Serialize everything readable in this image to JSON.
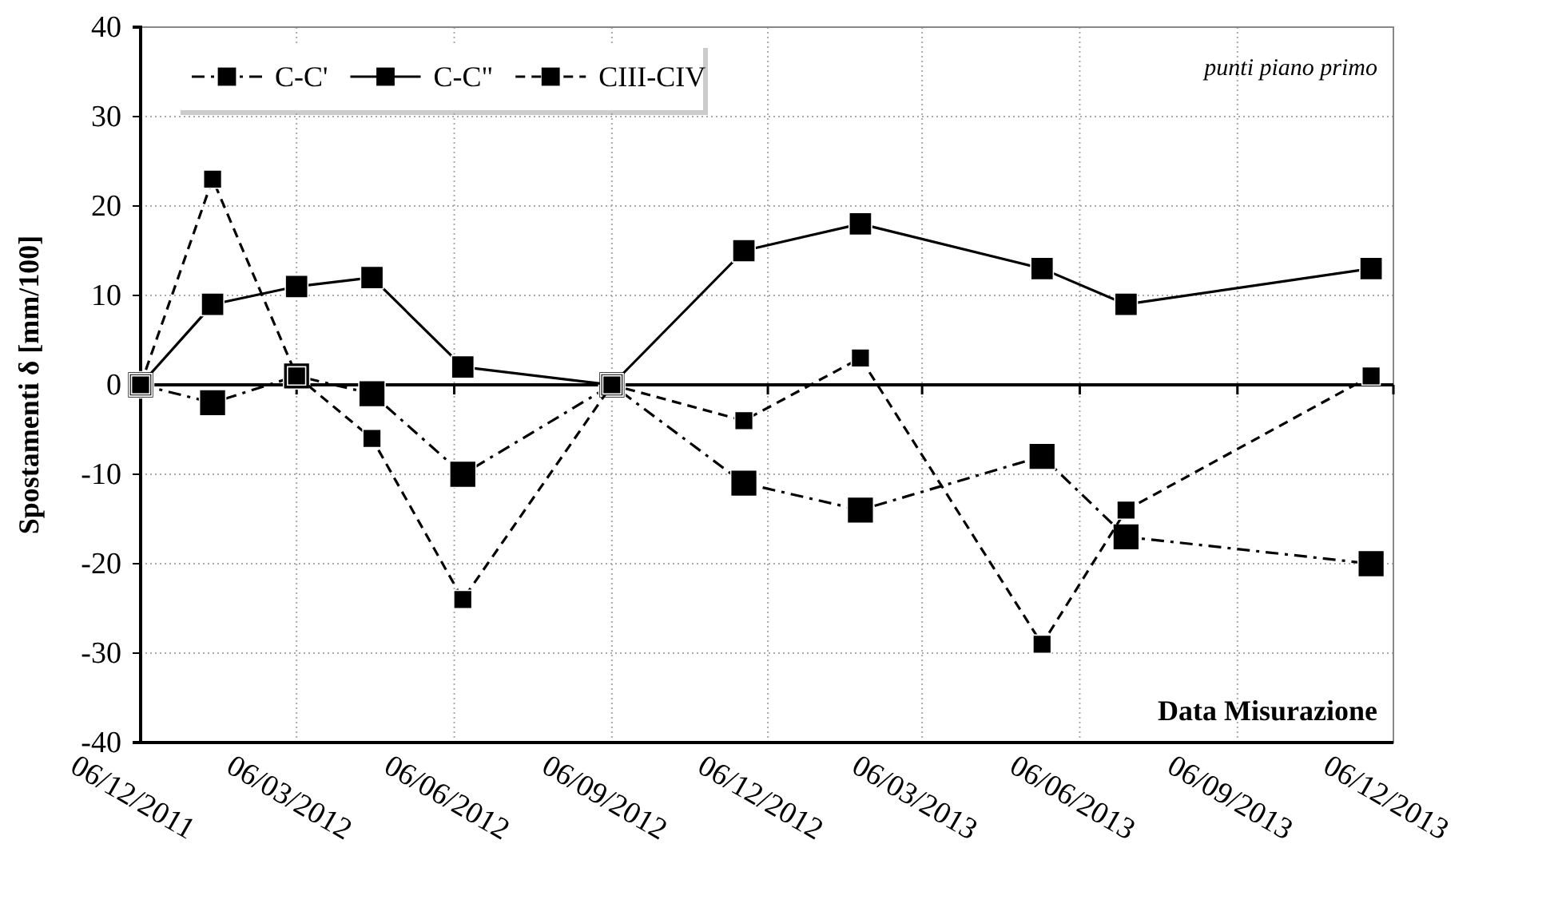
{
  "chart_data": {
    "type": "line",
    "ylabel": "Spostamenti δ [mm/100]",
    "xlabel": "Data Misurazione",
    "annotations": [
      "punti piano primo"
    ],
    "x": [
      "2011-12-06",
      "2012-01-17",
      "2012-03-06",
      "2012-04-19",
      "2012-06-11",
      "2012-09-06",
      "2012-11-22",
      "2013-01-29",
      "2013-05-15",
      "2013-07-03",
      "2013-11-23"
    ],
    "series": [
      {
        "name": "C-C'",
        "color": "#000000",
        "line_style": "dashdot",
        "values": [
          0,
          -2,
          1,
          -1,
          -10,
          0,
          -11,
          -14,
          -8,
          -17,
          -20
        ]
      },
      {
        "name": "C-C\"",
        "color": "#000000",
        "line_style": "solid",
        "values": [
          0,
          9,
          11,
          12,
          2,
          0,
          15,
          18,
          13,
          9,
          13
        ]
      },
      {
        "name": "CIII-CIV",
        "color": "#000000",
        "line_style": "dashed",
        "values": [
          0,
          23,
          1,
          -6,
          -24,
          0,
          -4,
          3,
          -29,
          -14,
          1
        ]
      }
    ],
    "xlim": [
      "2011-12-06",
      "2013-12-06"
    ],
    "xticks": [
      {
        "value": "2011-12-06",
        "label": "06/12/2011"
      },
      {
        "value": "2012-03-06",
        "label": "06/03/2012"
      },
      {
        "value": "2012-06-06",
        "label": "06/06/2012"
      },
      {
        "value": "2012-09-06",
        "label": "06/09/2012"
      },
      {
        "value": "2012-12-06",
        "label": "06/12/2012"
      },
      {
        "value": "2013-03-06",
        "label": "06/03/2013"
      },
      {
        "value": "2013-06-06",
        "label": "06/06/2013"
      },
      {
        "value": "2013-09-06",
        "label": "06/09/2013"
      },
      {
        "value": "2013-12-06",
        "label": "06/12/2013"
      }
    ],
    "ylim": [
      -40,
      40
    ],
    "yticks": [
      -40,
      -30,
      -20,
      -10,
      0,
      10,
      20,
      30,
      40
    ],
    "grid": true,
    "legend": "top left",
    "marker": "square"
  }
}
